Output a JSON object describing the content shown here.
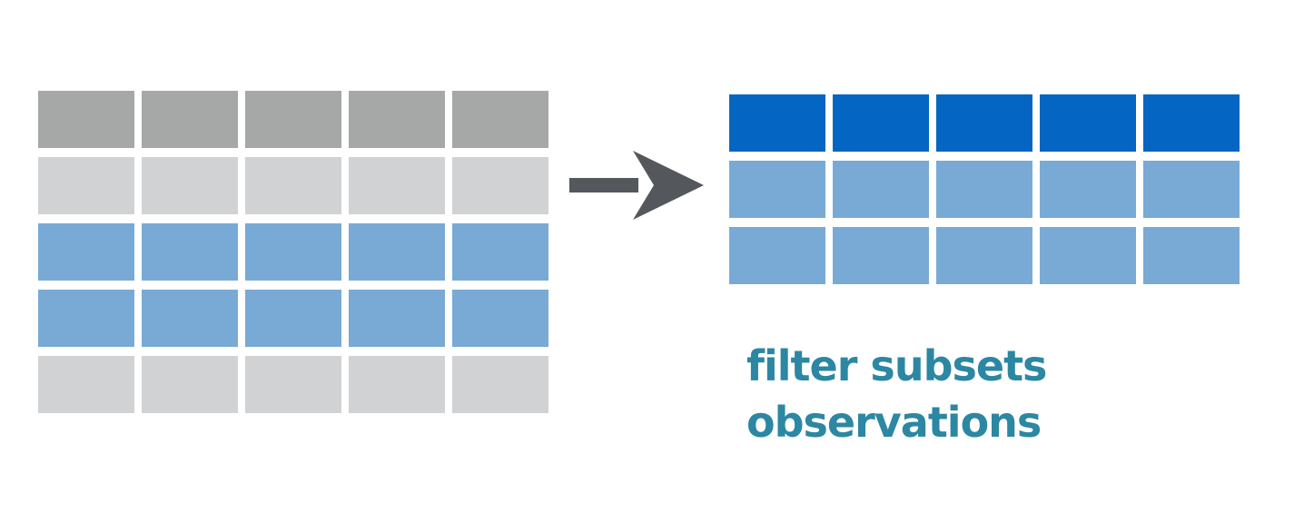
{
  "caption": {
    "line1": "filter subsets",
    "line2": "observations"
  },
  "colors": {
    "header_gray": "#A5A8A7",
    "row_light_gray": "#D1D2D4",
    "row_selected_blue": "#79AAD6",
    "header_blue": "#0565C2",
    "arrow": "#54575C",
    "caption": "#2C87A3",
    "background": "#FFFFFF"
  },
  "source_table": {
    "columns": 5,
    "rows": [
      "header",
      "unselected",
      "selected",
      "selected",
      "unselected"
    ]
  },
  "result_table": {
    "columns": 5,
    "rows": [
      "header",
      "selected",
      "selected"
    ]
  },
  "icons": {
    "arrow": "right-arrow-icon"
  }
}
